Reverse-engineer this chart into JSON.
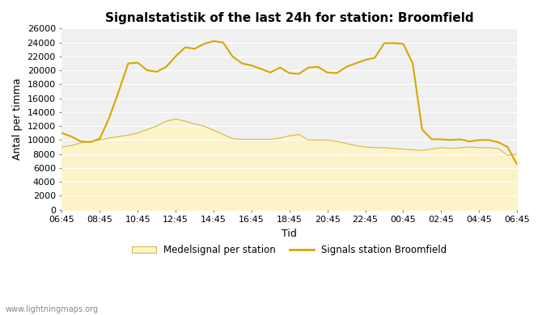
{
  "title": "Signalstatistik of the last 24h for station: Broomfield",
  "xlabel": "Tid",
  "ylabel": "Antal per timma",
  "watermark": "www.lightningmaps.org",
  "ylim": [
    0,
    26000
  ],
  "yticks": [
    0,
    2000,
    4000,
    6000,
    8000,
    10000,
    12000,
    14000,
    16000,
    18000,
    20000,
    22000,
    24000,
    26000
  ],
  "xtick_labels": [
    "06:45",
    "08:45",
    "10:45",
    "12:45",
    "14:45",
    "16:45",
    "18:45",
    "20:45",
    "22:45",
    "00:45",
    "02:45",
    "04:45",
    "06:45"
  ],
  "legend_fill_label": "Medelsignal per station",
  "legend_line_label": "Signals station Broomfield",
  "fill_color": "#fdf3c8",
  "fill_edge_color": "#d4b84a",
  "line_color": "#d4a800",
  "background_color": "#f0f0f0",
  "title_fontsize": 11,
  "tick_fontsize": 8,
  "label_fontsize": 9,
  "line_x": [
    0,
    1,
    2,
    3,
    4,
    5,
    6,
    7,
    8,
    9,
    10,
    11,
    12,
    13,
    14,
    15,
    16,
    17,
    18,
    19,
    20,
    21,
    22,
    23,
    24,
    25,
    26,
    27,
    28,
    29,
    30,
    31,
    32,
    33,
    34,
    35,
    36,
    37,
    38,
    39,
    40,
    41,
    42,
    43,
    44,
    45,
    46,
    47,
    48
  ],
  "line_y": [
    11000,
    10500,
    9800,
    9700,
    10200,
    13200,
    17000,
    21000,
    21100,
    20000,
    19800,
    20500,
    22000,
    23300,
    23100,
    23800,
    24200,
    24000,
    22000,
    21000,
    20700,
    20200,
    19700,
    20400,
    19600,
    19500,
    20400,
    20500,
    19700,
    19600,
    20500,
    21000,
    21500,
    21800,
    23900,
    23900,
    23800,
    21000,
    11500,
    10100,
    10100,
    10000,
    10100,
    9800,
    10000,
    10000,
    9700,
    9000,
    6500
  ],
  "fill_x": [
    0,
    1,
    2,
    3,
    4,
    5,
    6,
    7,
    8,
    9,
    10,
    11,
    12,
    13,
    14,
    15,
    16,
    17,
    18,
    19,
    20,
    21,
    22,
    23,
    24,
    25,
    26,
    27,
    28,
    29,
    30,
    31,
    32,
    33,
    34,
    35,
    36,
    37,
    38,
    39,
    40,
    41,
    42,
    43,
    44,
    45,
    46,
    47,
    48
  ],
  "fill_y": [
    9000,
    9200,
    9600,
    9800,
    10000,
    10300,
    10500,
    10700,
    11000,
    11500,
    12000,
    12700,
    13000,
    12700,
    12300,
    12000,
    11400,
    10800,
    10200,
    10100,
    10100,
    10100,
    10100,
    10300,
    10600,
    10800,
    10000,
    10000,
    10000,
    9800,
    9500,
    9200,
    9000,
    8900,
    8900,
    8800,
    8700,
    8600,
    8500,
    8700,
    8900,
    8800,
    8900,
    9000,
    8900,
    8900,
    8800,
    7800,
    8000
  ],
  "n_points": 49,
  "xlim": [
    0,
    48
  ]
}
